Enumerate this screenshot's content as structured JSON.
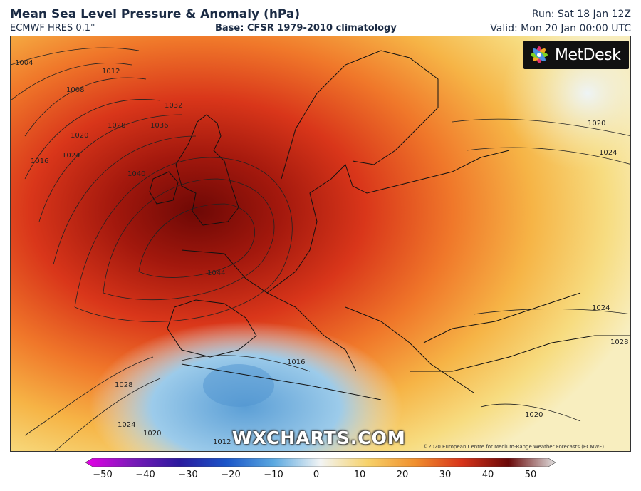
{
  "header": {
    "title": "Mean Sea Level Pressure & Anomaly (hPa)",
    "model": "ECMWF HRES 0.1°",
    "base": "Base: CFSR 1979-2010 climatology",
    "run": "Run: Sat 18 Jan 12Z",
    "valid": "Valid: Mon 20 Jan 00:00 UTC"
  },
  "branding": {
    "logo_text": "MetDesk",
    "watermark": "WXCHARTS.COM",
    "credit": "©2020 European Centre for Medium-Range Weather Forecasts (ECMWF)"
  },
  "map": {
    "field": "pressure anomaly",
    "isobar_labels": [
      "1004",
      "1008",
      "1012",
      "1016",
      "1020",
      "1024",
      "1028",
      "1032",
      "1036",
      "1040",
      "1044",
      "1020",
      "1024",
      "1024",
      "1028",
      "1016",
      "1020",
      "1024",
      "1028",
      "1020",
      "1012"
    ],
    "colors": {
      "strong_positive": "#7a0a06",
      "positive": "#d9361a",
      "moderate_positive": "#f18a2a",
      "weak_positive": "#f7c24a",
      "near_zero": "#f8eaa8",
      "negative": "#8fc2e6",
      "strong_negative": "#5c9fd6"
    }
  },
  "colorbar": {
    "ticks": [
      "−50",
      "−40",
      "−30",
      "−20",
      "−10",
      "0",
      "10",
      "20",
      "30",
      "40",
      "50"
    ],
    "stops": [
      "#e600e6",
      "#7a1ab8",
      "#2a1a9e",
      "#1a55c8",
      "#5aa8e0",
      "#f2f4f4",
      "#f7d26a",
      "#f0902e",
      "#d8341a",
      "#6a0808",
      "#e0e0e0"
    ]
  }
}
